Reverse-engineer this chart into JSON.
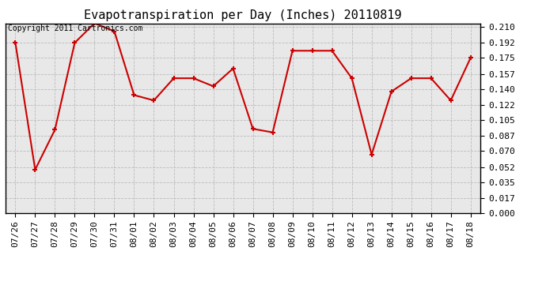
{
  "title": "Evapotranspiration per Day (Inches) 20110819",
  "copyright": "Copyright 2011 Cartronics.com",
  "labels": [
    "07/26",
    "07/27",
    "07/28",
    "07/29",
    "07/30",
    "07/31",
    "08/01",
    "08/02",
    "08/03",
    "08/04",
    "08/05",
    "08/06",
    "08/07",
    "08/08",
    "08/09",
    "08/10",
    "08/11",
    "08/12",
    "08/13",
    "08/14",
    "08/15",
    "08/16",
    "08/17",
    "08/18"
  ],
  "values": [
    0.192,
    0.049,
    0.094,
    0.192,
    0.214,
    0.205,
    0.133,
    0.127,
    0.152,
    0.152,
    0.143,
    0.163,
    0.095,
    0.091,
    0.183,
    0.183,
    0.183,
    0.152,
    0.066,
    0.137,
    0.152,
    0.152,
    0.127,
    0.175
  ],
  "yticks": [
    0.0,
    0.017,
    0.035,
    0.052,
    0.07,
    0.087,
    0.105,
    0.122,
    0.14,
    0.157,
    0.175,
    0.192,
    0.21
  ],
  "ymin": 0.0,
  "ymax": 0.2135,
  "line_color": "#cc0000",
  "marker": "+",
  "marker_size": 5,
  "marker_linewidth": 1.5,
  "bg_color": "#ffffff",
  "plot_bg_color": "#e8e8e8",
  "grid_color": "#bbbbbb",
  "title_fontsize": 11,
  "copyright_fontsize": 7,
  "tick_fontsize": 8,
  "line_width": 1.5
}
